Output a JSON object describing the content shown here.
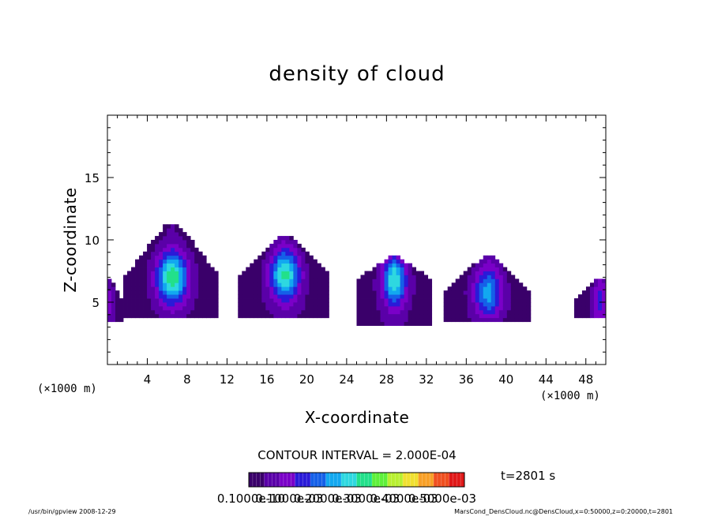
{
  "chart_data": {
    "type": "heatmap",
    "title": "density of cloud",
    "xlabel": "X-coordinate",
    "ylabel": "Z-coordinate",
    "x_unit_left": "(×1000 m)",
    "x_unit_right": "(×1000 m)",
    "xlim": [
      0,
      50
    ],
    "ylim": [
      0,
      20
    ],
    "x_ticks": [
      "4",
      "8",
      "12",
      "16",
      "20",
      "24",
      "28",
      "32",
      "36",
      "40",
      "44",
      "48"
    ],
    "x_tick_values": [
      4,
      8,
      12,
      16,
      20,
      24,
      28,
      32,
      36,
      40,
      44,
      48
    ],
    "y_ticks": [
      "5",
      "10",
      "15"
    ],
    "y_tick_values": [
      5,
      10,
      15
    ],
    "contour_interval": "CONTOUR INTERVAL = 2.000E-04",
    "time_label": "t=2801 s",
    "colorbar_labels": [
      "0.1000e-10",
      "0.1000e-03",
      "0.2000e-03",
      "0.3000e-03",
      "0.4000e-03",
      "0.5000e-03"
    ],
    "colorbar_min": 0.0,
    "colorbar_max": 0.0005,
    "clouds": [
      {
        "center_x": 6.5,
        "center_z": 7.0,
        "half_width": 4.8,
        "top_z": 11.2,
        "base_z": 3.6,
        "peak": 0.00024
      },
      {
        "center_x": 17.8,
        "center_z": 7.2,
        "half_width": 4.6,
        "top_z": 10.2,
        "base_z": 3.6,
        "peak": 0.00022
      },
      {
        "center_x": 28.8,
        "center_z": 6.8,
        "half_width": 3.8,
        "top_z": 8.6,
        "base_z": 3.2,
        "peak": 0.00021
      },
      {
        "center_x": 38.2,
        "center_z": 5.8,
        "half_width": 4.4,
        "top_z": 8.6,
        "base_z": 3.4,
        "peak": 0.00016
      },
      {
        "center_x": 49.5,
        "center_z": 5.2,
        "half_width": 2.6,
        "top_z": 7.0,
        "base_z": 3.6,
        "peak": 8e-05
      },
      {
        "center_x": 0.2,
        "center_z": 5.0,
        "half_width": 1.4,
        "top_z": 6.8,
        "base_z": 3.4,
        "peak": 4e-05
      }
    ]
  },
  "footer": {
    "left": "/usr/bin/gpview   2008-12-29",
    "right": "MarsCond_DensCloud.nc@DensCloud,x=0:50000,z=0:20000,t=2801"
  }
}
